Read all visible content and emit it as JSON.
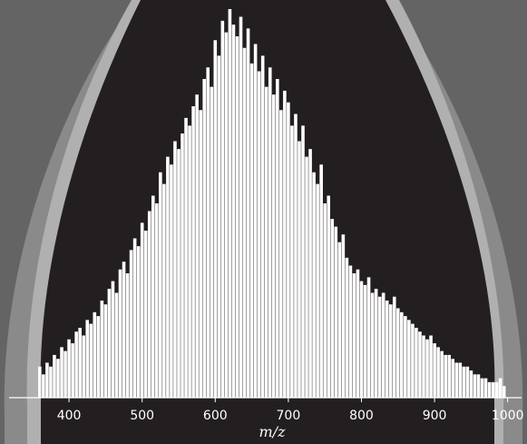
{
  "chart_data": {
    "type": "bar",
    "x_label": "m/z",
    "color": "#ffffff",
    "xlim": [
      318,
      1019
    ],
    "ylim": [
      0,
      100
    ],
    "xticks": [
      400,
      500,
      600,
      700,
      800,
      900,
      1000
    ],
    "x": [
      360,
      365,
      370,
      375,
      380,
      385,
      390,
      395,
      400,
      405,
      410,
      415,
      420,
      425,
      430,
      435,
      440,
      445,
      450,
      455,
      460,
      465,
      470,
      475,
      480,
      485,
      490,
      495,
      500,
      505,
      510,
      515,
      520,
      525,
      530,
      535,
      540,
      545,
      550,
      555,
      560,
      565,
      570,
      575,
      580,
      585,
      590,
      595,
      600,
      605,
      610,
      615,
      620,
      625,
      630,
      635,
      640,
      645,
      650,
      655,
      660,
      665,
      670,
      675,
      680,
      685,
      690,
      695,
      700,
      705,
      710,
      715,
      720,
      725,
      730,
      735,
      740,
      745,
      750,
      755,
      760,
      765,
      770,
      775,
      780,
      785,
      790,
      795,
      800,
      805,
      810,
      815,
      820,
      825,
      830,
      835,
      840,
      845,
      850,
      855,
      860,
      865,
      870,
      875,
      880,
      885,
      890,
      895,
      900,
      905,
      910,
      915,
      920,
      925,
      930,
      935,
      940,
      945,
      950,
      955,
      960,
      965,
      970,
      975,
      980,
      985,
      990,
      995
    ],
    "values": [
      8,
      6,
      9,
      8,
      11,
      10,
      13,
      12,
      15,
      14,
      17,
      18,
      16,
      20,
      19,
      22,
      21,
      25,
      24,
      28,
      30,
      27,
      33,
      35,
      32,
      38,
      41,
      39,
      45,
      43,
      48,
      52,
      50,
      58,
      55,
      62,
      60,
      66,
      64,
      68,
      72,
      70,
      75,
      78,
      74,
      82,
      85,
      80,
      92,
      88,
      97,
      94,
      100,
      96,
      93,
      98,
      90,
      95,
      86,
      91,
      84,
      88,
      80,
      85,
      78,
      82,
      74,
      79,
      76,
      70,
      73,
      66,
      70,
      62,
      64,
      58,
      55,
      60,
      50,
      52,
      46,
      44,
      40,
      42,
      36,
      34,
      32,
      33,
      30,
      29,
      31,
      27,
      28,
      26,
      27,
      25,
      24,
      26,
      23,
      22,
      21,
      20,
      19,
      18,
      17,
      16,
      15,
      16,
      14,
      13,
      12,
      11,
      11,
      10,
      9,
      9,
      8,
      8,
      7,
      6,
      6,
      5,
      5,
      4,
      4,
      4,
      5,
      3
    ]
  }
}
